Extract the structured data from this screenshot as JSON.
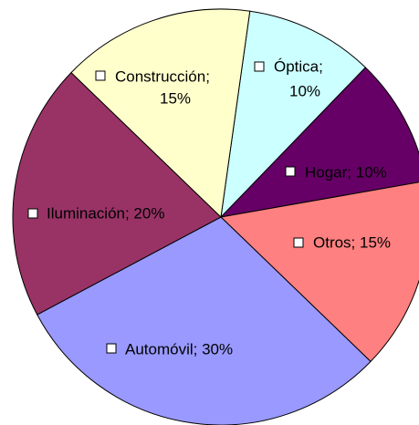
{
  "chart_data": {
    "type": "pie",
    "labels": [
      [
        "Óptica;",
        "10%"
      ],
      [
        "Hogar; 10%"
      ],
      [
        "Otros; 15%"
      ],
      [
        "Automóvil; 30%"
      ],
      [
        "Iluminación; 20%"
      ],
      [
        "Construcción;",
        "15%"
      ]
    ],
    "values": [
      10,
      10,
      15,
      30,
      20,
      15
    ],
    "colors": [
      "#ccffff",
      "#660066",
      "#ff8080",
      "#9999ff",
      "#993366",
      "#ffffcc"
    ]
  }
}
